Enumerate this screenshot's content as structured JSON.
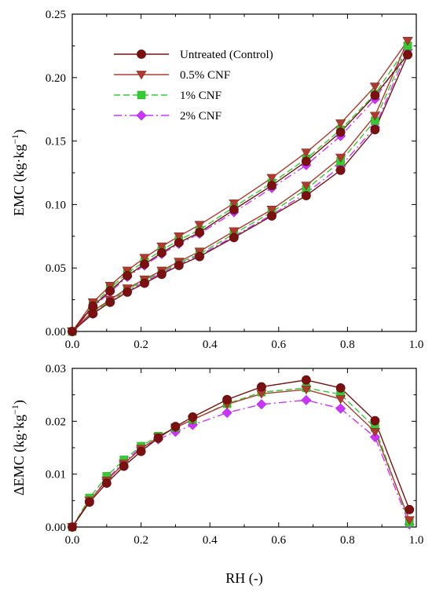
{
  "figure": {
    "top_panel": {
      "type": "line",
      "ylabel": "EMC (kg·kg",
      "ylabel_sup": "−1",
      "ylabel_close": ")",
      "xlim": [
        0,
        1.0
      ],
      "ylim": [
        0,
        0.25
      ],
      "x_ticks": [
        "0.0",
        "0.2",
        "0.4",
        "0.6",
        "0.8",
        "1.0"
      ],
      "y_ticks": [
        "0.00",
        "0.05",
        "0.10",
        "0.15",
        "0.20",
        "0.25"
      ],
      "legend_position": "top-left"
    },
    "bottom_panel": {
      "type": "line",
      "xlabel": "RH (-)",
      "ylabel": "ΔEMC (kg·kg",
      "ylabel_sup": "−1",
      "ylabel_close": ")",
      "xlim": [
        0,
        1.0
      ],
      "ylim": [
        0,
        0.03
      ],
      "x_ticks": [
        "0.0",
        "0.2",
        "0.4",
        "0.6",
        "0.8",
        "1.0"
      ],
      "y_ticks": [
        "0.00",
        "0.01",
        "0.02",
        "0.03"
      ]
    }
  },
  "chart_data": [
    {
      "type": "line",
      "xlabel": "",
      "ylabel": "EMC (kg·kg −1)",
      "xlim": [
        0,
        1.0
      ],
      "ylim": [
        0,
        0.25
      ],
      "grid": false,
      "legend": "top-left",
      "series": [
        {
          "name": "Untreated (Control)",
          "color": "#7a1010",
          "marker": "circle",
          "dash": "solid",
          "adsorption": {
            "x": [
              0,
              0.06,
              0.11,
              0.16,
              0.21,
              0.26,
              0.31,
              0.37,
              0.47,
              0.58,
              0.68,
              0.78,
              0.88,
              0.975
            ],
            "y": [
              0,
              0.014,
              0.023,
              0.031,
              0.038,
              0.045,
              0.052,
              0.059,
              0.074,
              0.091,
              0.107,
              0.127,
              0.159,
              0.218
            ]
          },
          "desorption": {
            "x": [
              0.975,
              0.88,
              0.78,
              0.68,
              0.58,
              0.47,
              0.37,
              0.31,
              0.26,
              0.21,
              0.16,
              0.11,
              0.06,
              0
            ],
            "y": [
              0.218,
              0.186,
              0.157,
              0.134,
              0.115,
              0.096,
              0.078,
              0.07,
              0.062,
              0.053,
              0.044,
              0.032,
              0.02,
              0
            ]
          }
        },
        {
          "name": "0.5% CNF",
          "color": "#b03a2e",
          "marker": "triangle-down",
          "dash": "solid",
          "adsorption": {
            "x": [
              0,
              0.06,
              0.11,
              0.16,
              0.21,
              0.26,
              0.31,
              0.37,
              0.47,
              0.58,
              0.68,
              0.78,
              0.88,
              0.975
            ],
            "y": [
              0,
              0.016,
              0.025,
              0.034,
              0.041,
              0.048,
              0.055,
              0.063,
              0.079,
              0.096,
              0.115,
              0.137,
              0.17,
              0.229
            ]
          },
          "desorption": {
            "x": [
              0.975,
              0.88,
              0.78,
              0.68,
              0.58,
              0.47,
              0.37,
              0.31,
              0.26,
              0.21,
              0.16,
              0.11,
              0.06,
              0
            ],
            "y": [
              0.229,
              0.193,
              0.164,
              0.141,
              0.121,
              0.101,
              0.084,
              0.075,
              0.067,
              0.058,
              0.048,
              0.036,
              0.023,
              0
            ]
          }
        },
        {
          "name": "1% CNF",
          "color": "#33cc33",
          "marker": "square",
          "dash": "dashed",
          "adsorption": {
            "x": [
              0,
              0.06,
              0.11,
              0.16,
              0.21,
              0.26,
              0.31,
              0.37,
              0.47,
              0.58,
              0.68,
              0.78,
              0.88,
              0.975
            ],
            "y": [
              0,
              0.015,
              0.024,
              0.033,
              0.04,
              0.047,
              0.054,
              0.061,
              0.077,
              0.094,
              0.112,
              0.134,
              0.166,
              0.225
            ]
          },
          "desorption": {
            "x": [
              0.975,
              0.88,
              0.78,
              0.68,
              0.58,
              0.47,
              0.37,
              0.31,
              0.26,
              0.21,
              0.16,
              0.11,
              0.06,
              0
            ],
            "y": [
              0.225,
              0.187,
              0.159,
              0.136,
              0.117,
              0.098,
              0.08,
              0.072,
              0.064,
              0.055,
              0.046,
              0.034,
              0.021,
              0
            ]
          }
        },
        {
          "name": "2% CNF",
          "color": "#cc33ff",
          "marker": "diamond",
          "dash": "dashdot",
          "adsorption": {
            "x": [
              0,
              0.06,
              0.11,
              0.16,
              0.21,
              0.26,
              0.31,
              0.37,
              0.47,
              0.58,
              0.68,
              0.78,
              0.88,
              0.975
            ],
            "y": [
              0,
              0.014,
              0.023,
              0.032,
              0.039,
              0.046,
              0.053,
              0.06,
              0.075,
              0.092,
              0.109,
              0.13,
              0.161,
              0.222
            ]
          },
          "desorption": {
            "x": [
              0.975,
              0.88,
              0.78,
              0.68,
              0.58,
              0.47,
              0.37,
              0.31,
              0.26,
              0.21,
              0.16,
              0.11,
              0.06,
              0
            ],
            "y": [
              0.222,
              0.183,
              0.154,
              0.131,
              0.113,
              0.094,
              0.077,
              0.069,
              0.061,
              0.052,
              0.043,
              0.031,
              0.019,
              0
            ]
          }
        }
      ]
    },
    {
      "type": "line",
      "xlabel": "RH (-)",
      "ylabel": "ΔEMC (kg·kg −1)",
      "xlim": [
        0,
        1.0
      ],
      "ylim": [
        0,
        0.03
      ],
      "grid": false,
      "series": [
        {
          "name": "Untreated (Control)",
          "color": "#7a1010",
          "marker": "circle",
          "dash": "solid",
          "x": [
            0,
            0.05,
            0.1,
            0.15,
            0.2,
            0.25,
            0.3,
            0.35,
            0.45,
            0.55,
            0.68,
            0.78,
            0.88,
            0.98
          ],
          "y": [
            0,
            0.0047,
            0.0083,
            0.0115,
            0.0143,
            0.0168,
            0.019,
            0.0208,
            0.0241,
            0.0265,
            0.0278,
            0.0263,
            0.0201,
            0.0033
          ]
        },
        {
          "name": "0.5% CNF",
          "color": "#b03a2e",
          "marker": "triangle-down",
          "dash": "solid",
          "x": [
            0,
            0.05,
            0.1,
            0.15,
            0.2,
            0.25,
            0.3,
            0.35,
            0.45,
            0.55,
            0.68,
            0.78,
            0.88,
            0.98
          ],
          "y": [
            0,
            0.005,
            0.0088,
            0.012,
            0.0148,
            0.017,
            0.0188,
            0.0203,
            0.0232,
            0.0252,
            0.026,
            0.0242,
            0.018,
            0.0013
          ]
        },
        {
          "name": "1% CNF",
          "color": "#33cc33",
          "marker": "square",
          "dash": "dashed",
          "x": [
            0,
            0.05,
            0.1,
            0.15,
            0.2,
            0.25,
            0.3,
            0.35,
            0.45,
            0.55,
            0.68,
            0.78,
            0.88,
            0.98
          ],
          "y": [
            0,
            0.0055,
            0.0096,
            0.0127,
            0.0153,
            0.0172,
            0.0188,
            0.0203,
            0.0233,
            0.0255,
            0.0263,
            0.0251,
            0.0188,
            0.0008
          ]
        },
        {
          "name": "2% CNF",
          "color": "#cc33ff",
          "marker": "diamond",
          "dash": "dashdot",
          "x": [
            0,
            0.05,
            0.1,
            0.15,
            0.2,
            0.25,
            0.3,
            0.35,
            0.45,
            0.55,
            0.68,
            0.78,
            0.88,
            0.98
          ],
          "y": [
            0,
            0.005,
            0.009,
            0.0123,
            0.015,
            0.0166,
            0.018,
            0.0193,
            0.0216,
            0.0232,
            0.024,
            0.0224,
            0.017,
            0.0005
          ]
        }
      ]
    }
  ]
}
